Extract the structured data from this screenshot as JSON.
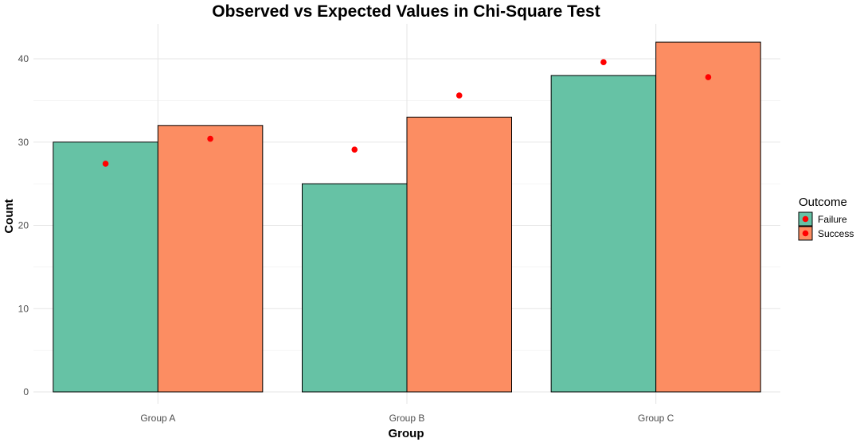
{
  "chart_data": {
    "type": "bar",
    "title": "Observed vs Expected Values in Chi-Square Test",
    "xlabel": "Group",
    "ylabel": "Count",
    "categories": [
      "Group A",
      "Group B",
      "Group C"
    ],
    "ylim": [
      0,
      43
    ],
    "yticks": [
      0,
      10,
      20,
      30,
      40
    ],
    "grid": true,
    "legend": {
      "title": "Outcome",
      "position": "right"
    },
    "series": [
      {
        "name": "Failure",
        "color": "#66c2a5",
        "values": [
          30,
          25,
          38
        ],
        "expected": [
          27.4,
          29.1,
          39.6
        ]
      },
      {
        "name": "Success",
        "color": "#fc8d62",
        "values": [
          32,
          33,
          42
        ],
        "expected": [
          30.4,
          35.6,
          37.8
        ]
      }
    ],
    "expected_point_color": "#ff0000"
  }
}
